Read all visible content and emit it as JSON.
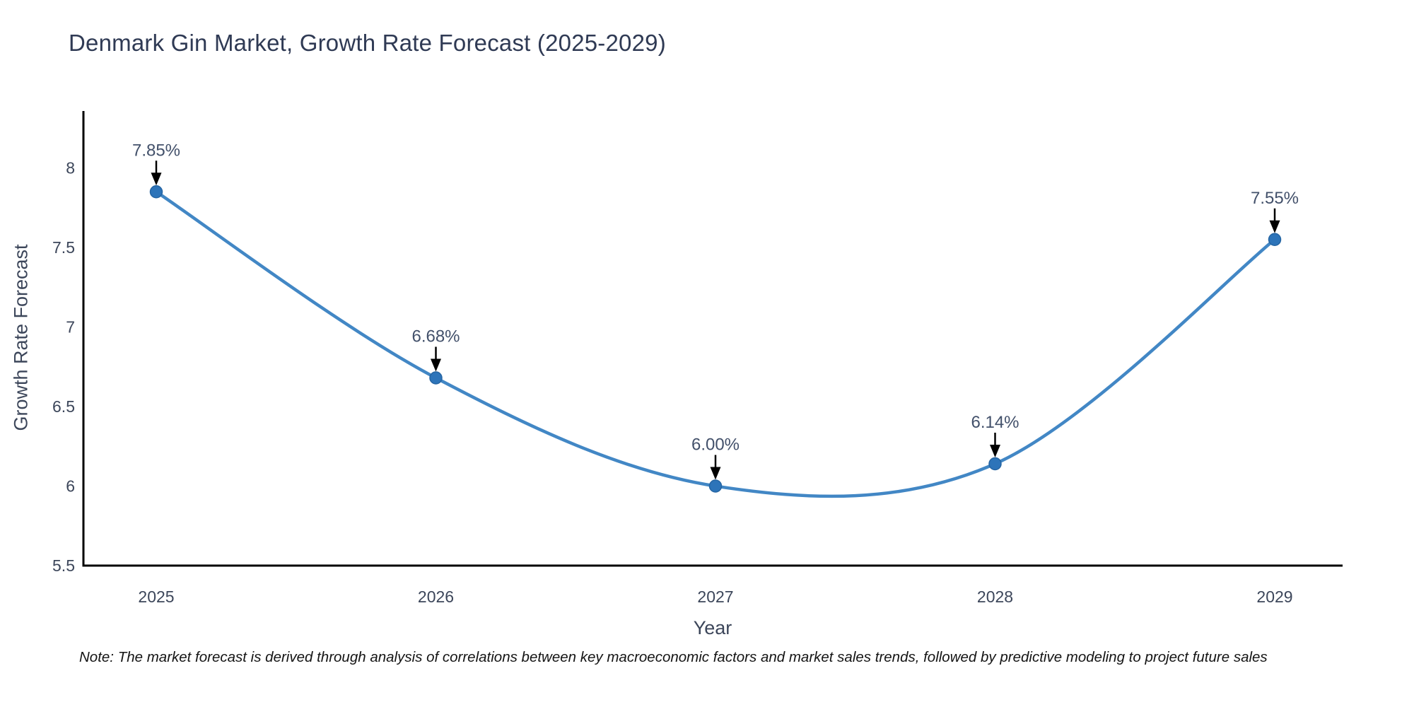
{
  "title": "Denmark Gin Market, Growth Rate Forecast (2025-2029)",
  "note": "Note: The market forecast is derived through analysis of correlations between key macroeconomic factors and market sales trends, followed by predictive modeling to project future sales",
  "colors": {
    "background": "#ffffff",
    "title_text": "#2f3a54",
    "axis_line": "#000000",
    "tick_text": "#3c465a",
    "annotation_text": "#42506a",
    "arrow": "#000000",
    "line": "#4287c5",
    "marker": "#2d74b9",
    "marker_edge": "#2565a3",
    "note_text": "#141414"
  },
  "chart_data": {
    "type": "line",
    "title": "Denmark Gin Market, Growth Rate Forecast (2025-2029)",
    "xlabel": "Year",
    "ylabel": "Growth Rate Forecast",
    "categories": [
      "2025",
      "2026",
      "2027",
      "2028",
      "2029"
    ],
    "values": [
      7.85,
      6.68,
      6.0,
      6.14,
      7.55
    ],
    "point_labels": [
      "7.85%",
      "6.68%",
      "6.00%",
      "6.14%",
      "7.55%"
    ],
    "yticks": [
      "5.5",
      "6",
      "6.5",
      "7",
      "7.5",
      "8"
    ],
    "ytick_values": [
      5.5,
      6,
      6.5,
      7,
      7.5,
      8
    ],
    "ylim": [
      5.5,
      8.36
    ],
    "grid": false,
    "legend": "none",
    "line_style": "smooth-spline",
    "marker": "circle",
    "annotation_style": "value-label-with-down-arrow"
  }
}
